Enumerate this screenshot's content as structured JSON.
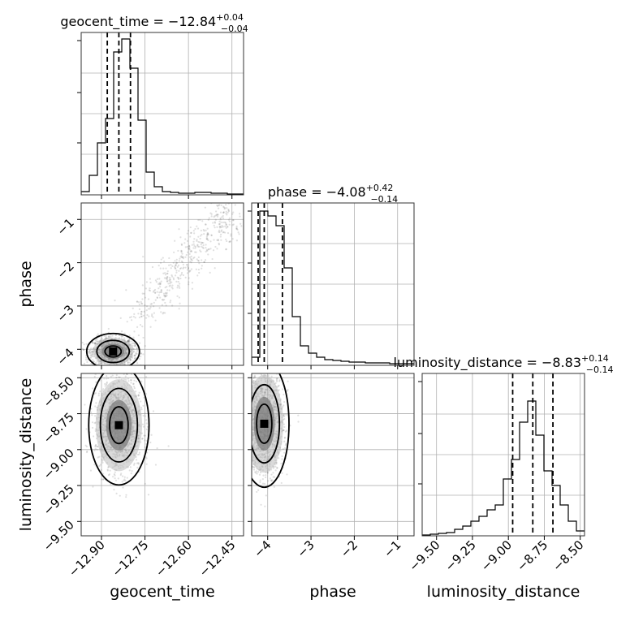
{
  "chart_data": {
    "type": "corner",
    "parameters": [
      "geocent_time",
      "phase",
      "luminosity_distance"
    ],
    "axis_labels": {
      "x": [
        "geocent_time",
        "phase",
        "luminosity_distance"
      ],
      "y": [
        "",
        "phase",
        "luminosity_distance"
      ]
    },
    "titles": [
      {
        "param": "geocent_time",
        "prefix": "geocent_time = −12.84",
        "plus": "+0.04",
        "minus": "−0.04"
      },
      {
        "param": "phase",
        "prefix": "phase = −4.08",
        "plus": "+0.42",
        "minus": "−0.14"
      },
      {
        "param": "luminosity_distance",
        "prefix": "luminosity_distance = −8.83",
        "plus": "+0.14",
        "minus": "−0.14"
      }
    ],
    "ranges": {
      "geocent_time": [
        -12.97,
        -12.41
      ],
      "phase": [
        -4.37,
        -0.62
      ],
      "luminosity_distance": [
        -9.6,
        -8.47
      ]
    },
    "ticks": {
      "geocent_time": [
        {
          "v": -12.9,
          "label": "−12.90"
        },
        {
          "v": -12.75,
          "label": "−12.75"
        },
        {
          "v": -12.6,
          "label": "−12.60"
        },
        {
          "v": -12.45,
          "label": "−12.45"
        }
      ],
      "phase": [
        {
          "v": -4,
          "label": "−4"
        },
        {
          "v": -3,
          "label": "−3"
        },
        {
          "v": -2,
          "label": "−2"
        },
        {
          "v": -1,
          "label": "−1"
        }
      ],
      "luminosity_distance": [
        {
          "v": -9.5,
          "label": "−9.50"
        },
        {
          "v": -9.25,
          "label": "−9.25"
        },
        {
          "v": -9.0,
          "label": "−9.00"
        },
        {
          "v": -8.75,
          "label": "−8.75"
        },
        {
          "v": -8.5,
          "label": "−8.50"
        }
      ]
    },
    "quantiles": {
      "geocent_time": [
        -12.88,
        -12.84,
        -12.8
      ],
      "phase": [
        -4.22,
        -4.08,
        -3.66
      ],
      "luminosity_distance": [
        -8.97,
        -8.83,
        -8.69
      ]
    },
    "histograms": {
      "geocent_time": [
        0.02,
        0.12,
        0.32,
        0.47,
        0.88,
        0.96,
        0.78,
        0.46,
        0.14,
        0.05,
        0.02,
        0.015,
        0.01,
        0.01,
        0.015,
        0.015,
        0.01,
        0.01,
        0.005,
        0.005
      ],
      "phase": [
        0.05,
        0.95,
        0.92,
        0.86,
        0.6,
        0.3,
        0.12,
        0.075,
        0.05,
        0.035,
        0.03,
        0.025,
        0.02,
        0.02,
        0.015,
        0.015,
        0.015,
        0.01,
        0.01,
        0.01
      ],
      "luminosity_distance": [
        0.005,
        0.01,
        0.015,
        0.02,
        0.04,
        0.06,
        0.09,
        0.12,
        0.16,
        0.19,
        0.35,
        0.47,
        0.7,
        0.83,
        0.62,
        0.4,
        0.31,
        0.19,
        0.09,
        0.03
      ]
    },
    "scatter": {
      "phase_vs_geocent_time": {
        "center": [
          -12.86,
          -4.05
        ],
        "spread": [
          0.035,
          0.16
        ],
        "tail": {
          "from": [
            -12.8,
            -3.4
          ],
          "to": [
            -12.45,
            -0.8
          ]
        }
      },
      "luminosity_distance_vs_geocent_time": {
        "center": [
          -12.84,
          -8.83
        ],
        "spread": [
          0.04,
          0.16
        ]
      },
      "luminosity_distance_vs_phase": {
        "center": [
          -4.08,
          -8.82
        ],
        "spread": [
          0.22,
          0.17
        ]
      }
    },
    "grid": true
  }
}
